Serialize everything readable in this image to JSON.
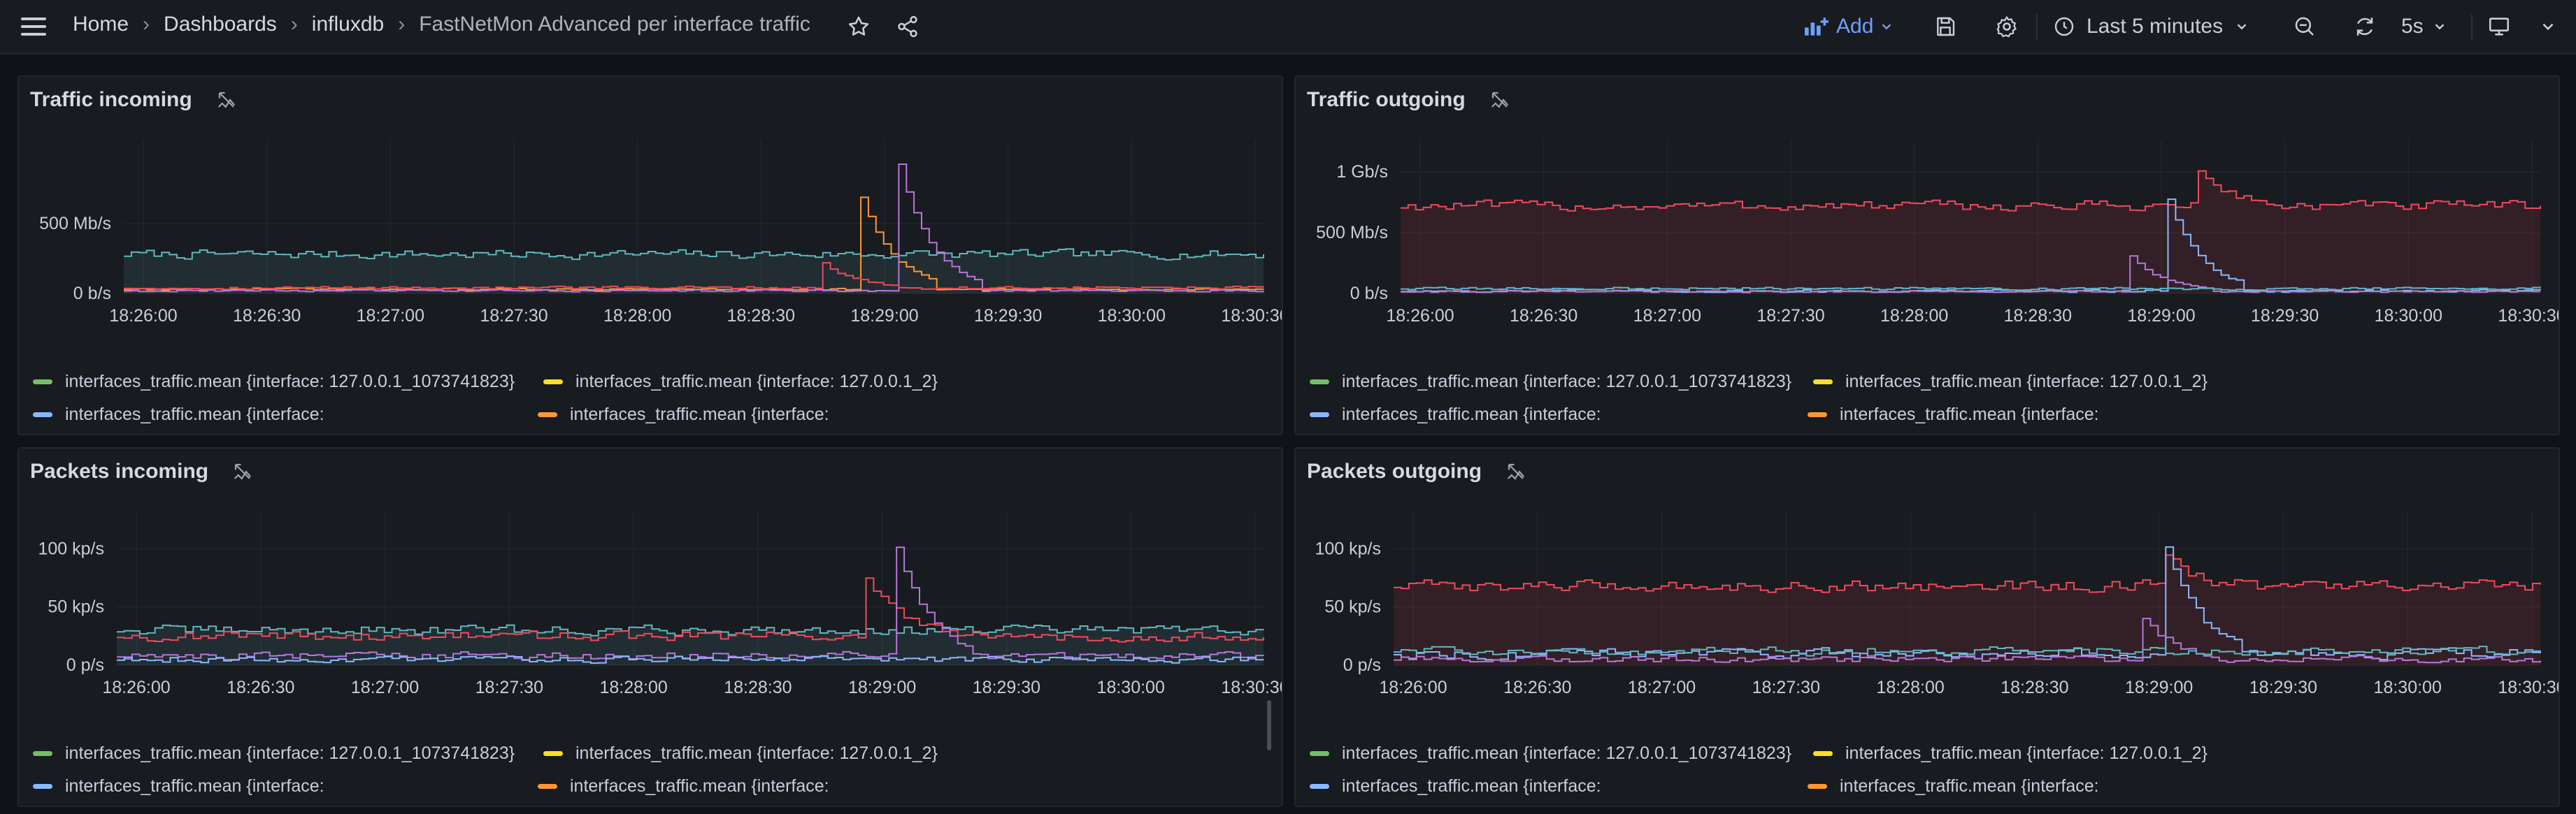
{
  "header": {
    "breadcrumbs": [
      "Home",
      "Dashboards",
      "influxdb",
      "FastNetMon Advanced per interface traffic"
    ],
    "add_label": "Add",
    "time_range": "Last 5 minutes",
    "refresh_interval": "5s",
    "accent_color": "#6e9fff"
  },
  "series_colors": {
    "green": "#73bf69",
    "yellow": "#fade2a",
    "lightblue": "#8ab8ff",
    "orange": "#ff9830",
    "red": "#f2495c",
    "blue": "#5794f2",
    "teal": "#5fb8c1",
    "purple": "#b877d9"
  },
  "legend": [
    {
      "label": "interfaces_traffic.mean {interface: 127.0.0.1_1073741823}",
      "color": "#73bf69"
    },
    {
      "label": "interfaces_traffic.mean {interface: 127.0.0.1_2}",
      "color": "#fade2a"
    },
    {
      "label": "interfaces_traffic.mean {interface:",
      "color": "#8ab8ff"
    },
    {
      "label": "interfaces_traffic.mean {interface:",
      "color": "#ff9830"
    },
    {
      "label": "interfaces_traffic.mean {interface:",
      "color": "#f2495c"
    },
    {
      "label": "interfaces_traffic.mean {interface:",
      "color": "#5794f2"
    }
  ],
  "x_ticks": [
    "18:26:00",
    "18:26:30",
    "18:27:00",
    "18:27:30",
    "18:28:00",
    "18:28:30",
    "18:29:00",
    "18:29:30",
    "18:30:00",
    "18:30:30"
  ],
  "panels": [
    {
      "title": "Traffic incoming",
      "chart_data": {
        "type": "line",
        "x_ticks": [
          "18:26:00",
          "18:26:30",
          "18:27:00",
          "18:27:30",
          "18:28:00",
          "18:28:30",
          "18:29:00",
          "18:29:30",
          "18:30:00",
          "18:30:30"
        ],
        "y_ticks": [
          "0 b/s",
          "500 Mb/s"
        ],
        "ylim": [
          0,
          1000
        ],
        "unit": "Mb/s",
        "series": [
          {
            "color": "#5fb8c1",
            "fill": true,
            "base": 280,
            "noise": 45,
            "spike_at": -1,
            "spike_height": 0
          },
          {
            "color": "#ff9830",
            "fill": false,
            "base": 30,
            "noise": 10,
            "spike_at": 0.645,
            "spike_height": 700
          },
          {
            "color": "#b877d9",
            "fill": false,
            "base": 20,
            "noise": 10,
            "spike_at": 0.68,
            "spike_height": 900
          },
          {
            "color": "#f2495c",
            "fill": false,
            "base": 40,
            "noise": 15,
            "spike_at": 0.61,
            "spike_height": 200
          }
        ]
      }
    },
    {
      "title": "Traffic outgoing",
      "chart_data": {
        "type": "line",
        "x_ticks": [
          "18:26:00",
          "18:26:30",
          "18:27:00",
          "18:27:30",
          "18:28:00",
          "18:28:30",
          "18:29:00",
          "18:29:30",
          "18:30:00",
          "18:30:30"
        ],
        "y_ticks": [
          "0 b/s",
          "500 Mb/s",
          "1 Gb/s"
        ],
        "ylim": [
          0,
          1150
        ],
        "unit": "Mb/s",
        "series": [
          {
            "color": "#f2495c",
            "fill": true,
            "base": 720,
            "noise": 60,
            "spike_at": 0.7,
            "spike_height": 280
          },
          {
            "color": "#8ab8ff",
            "fill": false,
            "base": 20,
            "noise": 15,
            "spike_at": 0.67,
            "spike_height": 850
          },
          {
            "color": "#b877d9",
            "fill": false,
            "base": 15,
            "noise": 10,
            "spike_at": 0.64,
            "spike_height": 300
          },
          {
            "color": "#5fb8c1",
            "fill": false,
            "base": 40,
            "noise": 15,
            "spike_at": -1,
            "spike_height": 0
          }
        ]
      }
    },
    {
      "title": "Packets incoming",
      "chart_data": {
        "type": "line",
        "x_ticks": [
          "18:26:00",
          "18:26:30",
          "18:27:00",
          "18:27:30",
          "18:28:00",
          "18:28:30",
          "18:29:00",
          "18:29:30",
          "18:30:00",
          "18:30:30"
        ],
        "y_ticks": [
          "0 p/s",
          "50 kp/s",
          "100 kp/s"
        ],
        "ylim": [
          0,
          120
        ],
        "unit": "kp/s",
        "series": [
          {
            "color": "#5fb8c1",
            "fill": true,
            "base": 30,
            "noise": 6,
            "spike_at": -1,
            "spike_height": 0
          },
          {
            "color": "#f2495c",
            "fill": false,
            "base": 25,
            "noise": 6,
            "spike_at": 0.65,
            "spike_height": 60
          },
          {
            "color": "#b877d9",
            "fill": false,
            "base": 8,
            "noise": 5,
            "spike_at": 0.675,
            "spike_height": 110
          },
          {
            "color": "#8ab8ff",
            "fill": false,
            "base": 5,
            "noise": 4,
            "spike_at": -1,
            "spike_height": 0
          }
        ]
      }
    },
    {
      "title": "Packets outgoing",
      "chart_data": {
        "type": "line",
        "x_ticks": [
          "18:26:00",
          "18:26:30",
          "18:27:00",
          "18:27:30",
          "18:28:00",
          "18:28:30",
          "18:29:00",
          "18:29:30",
          "18:30:00",
          "18:30:30"
        ],
        "y_ticks": [
          "0 p/s",
          "50 kp/s",
          "100 kp/s"
        ],
        "ylim": [
          0,
          120
        ],
        "unit": "kp/s",
        "series": [
          {
            "color": "#f2495c",
            "fill": true,
            "base": 68,
            "noise": 7,
            "spike_at": 0.67,
            "spike_height": 25
          },
          {
            "color": "#8ab8ff",
            "fill": false,
            "base": 10,
            "noise": 6,
            "spike_at": 0.67,
            "spike_height": 100
          },
          {
            "color": "#b877d9",
            "fill": false,
            "base": 5,
            "noise": 4,
            "spike_at": 0.65,
            "spike_height": 40
          },
          {
            "color": "#5fb8c1",
            "fill": false,
            "base": 12,
            "noise": 5,
            "spike_at": -1,
            "spike_height": 0
          }
        ]
      }
    }
  ]
}
